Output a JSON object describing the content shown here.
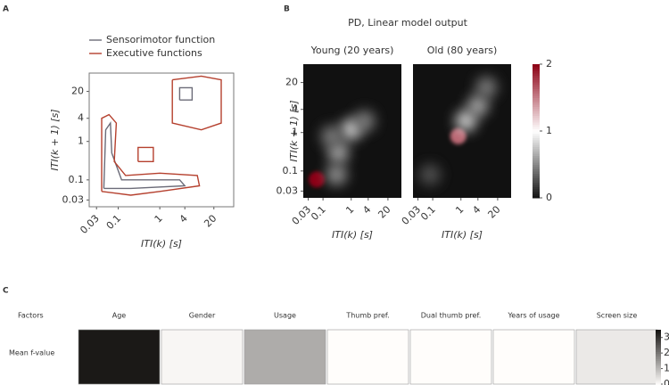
{
  "chart_data": [
    {
      "type": "contour",
      "panel": "A",
      "xlabel": "ITI(k) [s]",
      "ylabel": "ITI(k + 1) [s]",
      "log_x": true,
      "log_y": true,
      "xlim": [
        0.02,
        60
      ],
      "ylim": [
        0.02,
        60
      ],
      "xticks": [
        0.03,
        0.1,
        1,
        4,
        20
      ],
      "yticks": [
        0.03,
        0.1,
        1,
        4,
        20
      ],
      "legend": "upper left",
      "series": [
        {
          "name": "Sensorimotor function",
          "color": "#6b6b78",
          "x": [
            3,
            3,
            6,
            6,
            3,
            null,
            0.045,
            0.05,
            0.065,
            0.07,
            0.12,
            3,
            4,
            0.2,
            0.045
          ],
          "y": [
            12,
            25,
            25,
            12,
            12,
            null,
            0.06,
            2,
            3,
            0.5,
            0.1,
            0.1,
            0.07,
            0.06,
            0.06
          ]
        },
        {
          "name": "Executive functions",
          "color": "#b5402e",
          "x": [
            2,
            10,
            30,
            30,
            10,
            2,
            2,
            null,
            0.3,
            0.7,
            0.7,
            0.3,
            0.3,
            null,
            0.04,
            0.04,
            0.06,
            0.09,
            0.08,
            0.15,
            1,
            8,
            9,
            1,
            0.2,
            0.04
          ],
          "y": [
            40,
            50,
            40,
            3,
            2,
            3,
            40,
            null,
            0.3,
            0.3,
            0.7,
            0.7,
            0.3,
            null,
            0.05,
            4,
            5,
            3,
            0.3,
            0.13,
            0.15,
            0.13,
            0.07,
            0.05,
            0.04,
            0.05
          ]
        }
      ]
    },
    {
      "type": "heatmap",
      "panel": "B",
      "title": "PD, Linear model output",
      "xlabel": "ITI(k) [s]",
      "ylabel": "ITI(k + 1) [s]",
      "log_x": true,
      "log_y": true,
      "xlim": [
        0.02,
        60
      ],
      "ylim": [
        0.02,
        60
      ],
      "xticks": [
        0.03,
        0.1,
        1,
        4,
        20
      ],
      "yticks": [
        0.03,
        0.1,
        1,
        4,
        20
      ],
      "clim": [
        0,
        2
      ],
      "cticks": [
        0,
        1,
        2
      ],
      "panels": [
        {
          "subtitle": "Young (20 years)",
          "x": [
            0.06,
            0.35,
            1.0,
            0.3,
            3,
            0.2
          ],
          "y": [
            0.06,
            0.3,
            1.2,
            0.08,
            2,
            0.8
          ],
          "values": [
            2,
            0.7,
            0.9,
            0.6,
            0.5,
            0.5
          ]
        },
        {
          "subtitle": "Old (80 years)",
          "x": [
            0.8,
            1.5,
            4,
            8,
            0.08
          ],
          "y": [
            0.8,
            2,
            5,
            15,
            0.08
          ],
          "values": [
            1.6,
            0.9,
            0.7,
            0.5,
            0.3
          ]
        }
      ]
    },
    {
      "type": "heatmap-row",
      "panel": "C",
      "header_label": "Factors",
      "row_label": "Mean f-value",
      "categories": [
        "Age",
        "Gender",
        "Usage",
        "Thumb pref.",
        "Dual thumb pref.",
        "Years of usage",
        "Screen size"
      ],
      "values": [
        3.4,
        0.1,
        1.2,
        0,
        0,
        0,
        0.3
      ],
      "clim": [
        0,
        3.5
      ],
      "cticks": [
        0,
        1,
        2,
        3
      ]
    }
  ]
}
